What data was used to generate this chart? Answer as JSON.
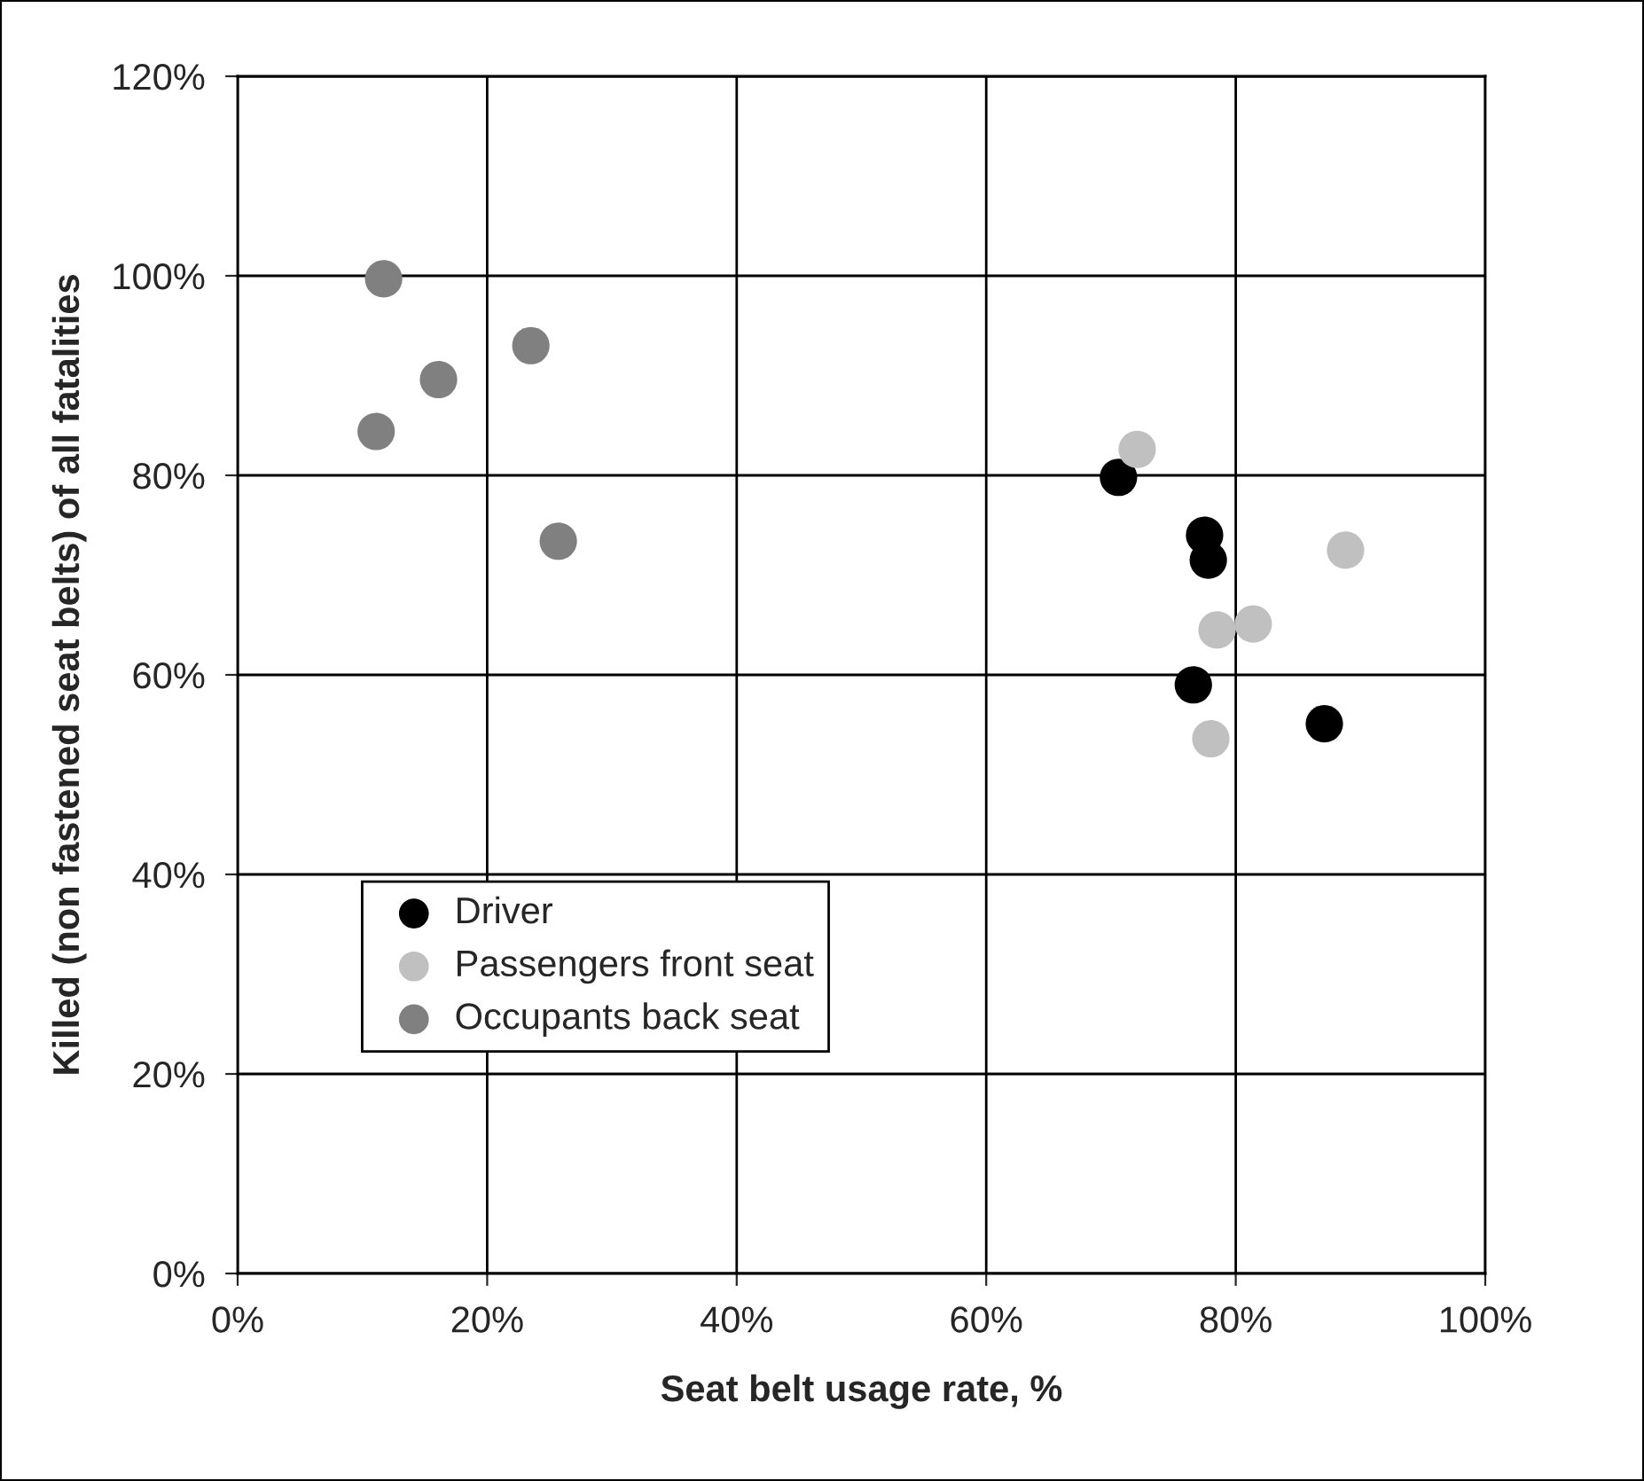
{
  "chart_data": {
    "type": "scatter",
    "xlabel": "Seat belt usage rate, %",
    "ylabel": "Killed (non fastened seat belts) of all fatalities",
    "series": [
      {
        "name": "Driver",
        "color": "#000000",
        "x": [
          70.6,
          77.5,
          77.8,
          76.6,
          87.1
        ],
        "values": [
          79.8,
          74.0,
          71.5,
          59.0,
          55.1
        ]
      },
      {
        "name": "Passengers front seat",
        "color": "#c0c0c0",
        "x": [
          72.1,
          88.8,
          78.5,
          81.4,
          78.0
        ],
        "values": [
          82.6,
          72.5,
          64.5,
          65.1,
          53.6
        ]
      },
      {
        "name": "Occupants back seat",
        "color": "#808080",
        "x": [
          11.7,
          23.5,
          16.1,
          11.1,
          25.7
        ],
        "values": [
          99.7,
          93.0,
          89.6,
          84.4,
          73.4
        ]
      }
    ],
    "xlim": [
      0,
      100
    ],
    "ylim": [
      0,
      120
    ],
    "xticks": [
      {
        "value": 0,
        "label": "0%"
      },
      {
        "value": 20,
        "label": "20%"
      },
      {
        "value": 40,
        "label": "40%"
      },
      {
        "value": 60,
        "label": "60%"
      },
      {
        "value": 80,
        "label": "80%"
      },
      {
        "value": 100,
        "label": "100%"
      }
    ],
    "yticks": [
      {
        "value": 0,
        "label": "0%"
      },
      {
        "value": 20,
        "label": "20%"
      },
      {
        "value": 40,
        "label": "40%"
      },
      {
        "value": 60,
        "label": "60%"
      },
      {
        "value": 80,
        "label": "80%"
      },
      {
        "value": 100,
        "label": "100%"
      },
      {
        "value": 120,
        "label": "120%"
      }
    ],
    "grid": true,
    "legend": "bottom left",
    "marker": "circle"
  }
}
